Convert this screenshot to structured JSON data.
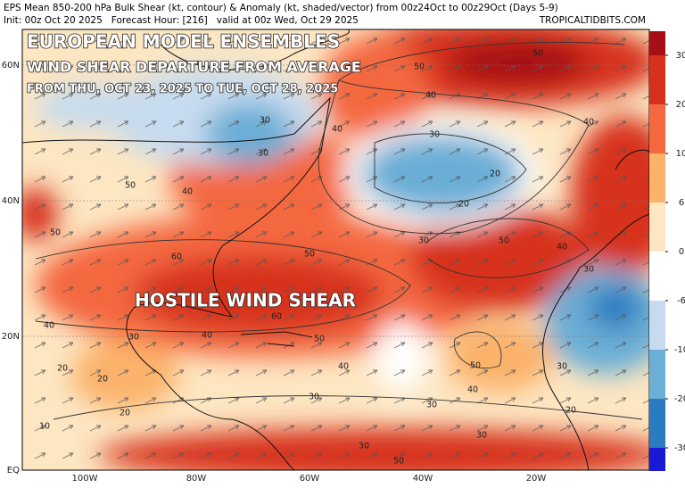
{
  "header": {
    "line1": "EPS Mean 850-200 hPa Bulk Shear (kt, contour) & Anomaly (kt, shaded/vector) from 00z24Oct to 00z29Oct (Days 5-9)",
    "line2": "Init: 00z Oct 20 2025   Forecast Hour: [216]   valid at 00z Wed, Oct 29 2025",
    "credit": "TROPICALTIDBITS.COM"
  },
  "overlay": {
    "title": "EUROPEAN MODEL ENSEMBLES",
    "subtitle": "WIND SHEAR DEPARTURE FROM AVERAGE",
    "dates": "FROM THU, OCT 23, 2025 TO TUE, OCT 28, 2025",
    "annotation": "HOSTILE WIND SHEAR"
  },
  "latitudes": [
    "60N",
    "40N",
    "20N",
    "EQ"
  ],
  "longitudes": [
    "100W",
    "80W",
    "60W",
    "40W",
    "20W"
  ],
  "colorbar": {
    "ticks": [
      30,
      20,
      10,
      6,
      0,
      -6,
      -10,
      -20,
      -30
    ],
    "colors": [
      "#a50f15",
      "#d7301f",
      "#f4683f",
      "#fbb26a",
      "#fde6c2",
      "#ffffff",
      "#c6dbef",
      "#6baed6",
      "#2b7bc0",
      "#1a1ad6"
    ]
  },
  "contour_labels": [
    50,
    50,
    40,
    40,
    40,
    30,
    30,
    30,
    20,
    20,
    50,
    40,
    30,
    50,
    60,
    50,
    40,
    50,
    40,
    30,
    60,
    50,
    40,
    30,
    30,
    50,
    40,
    30,
    30,
    30,
    20,
    20,
    20,
    10,
    20,
    40,
    50,
    30
  ]
}
